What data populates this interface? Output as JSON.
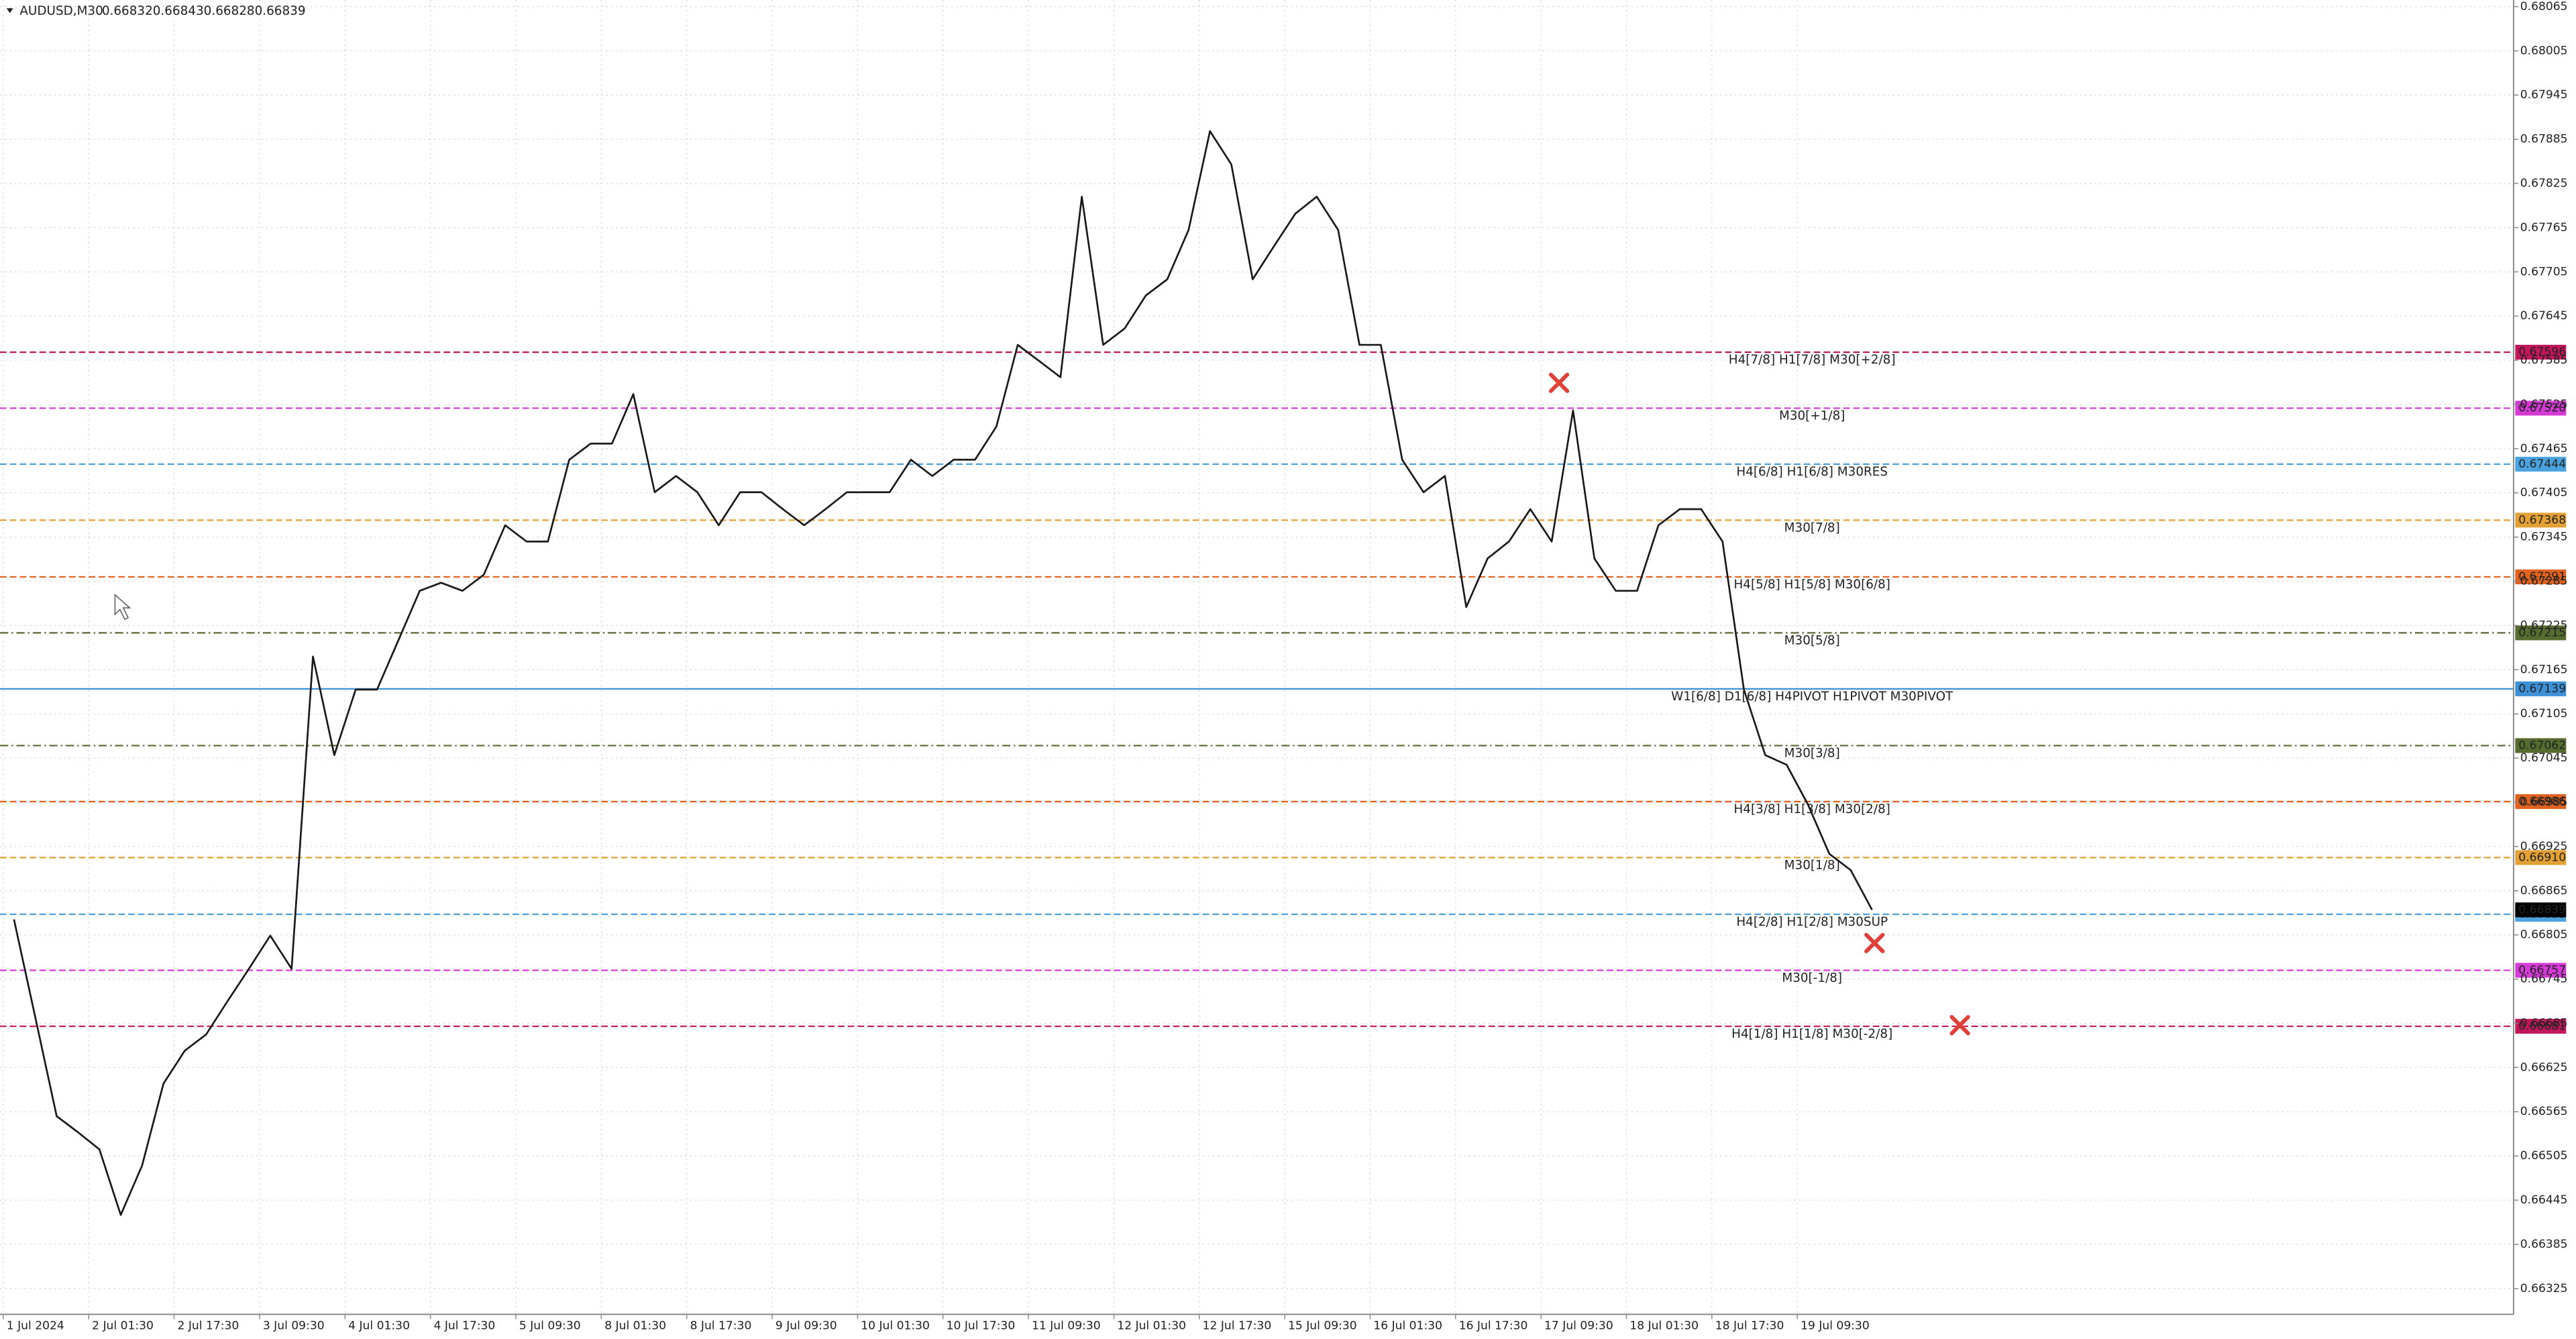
{
  "chart_data": {
    "type": "line",
    "symbol": "AUDUSD,M30",
    "ohlc": [
      0.66832,
      0.66843,
      0.66828,
      0.66839
    ],
    "categories": [
      "1 Jul 2024",
      null,
      null,
      null,
      "2 Jul 01:30",
      null,
      null,
      null,
      "2 Jul 17:30",
      null,
      null,
      null,
      "3 Jul 09:30",
      null,
      null,
      null,
      "4 Jul 01:30",
      null,
      null,
      null,
      "4 Jul 17:30",
      null,
      null,
      null,
      "5 Jul 09:30",
      null,
      null,
      null,
      "8 Jul 01:30",
      null,
      null,
      null,
      "8 Jul 17:30",
      null,
      null,
      null,
      "9 Jul 09:30",
      null,
      null,
      null,
      "10 Jul 01:30",
      null,
      null,
      null,
      "10 Jul 17:30",
      null,
      null,
      null,
      "11 Jul 09:30",
      null,
      null,
      null,
      "12 Jul 01:30",
      null,
      null,
      null,
      "12 Jul 17:30",
      null,
      null,
      null,
      "15 Jul 09:30",
      null,
      null,
      null,
      "16 Jul 01:30",
      null,
      null,
      null,
      "16 Jul 17:30",
      null,
      null,
      null,
      "17 Jul 09:30",
      null,
      null,
      null,
      "18 Jul 01:30",
      null,
      null,
      null,
      "18 Jul 17:30",
      null,
      null,
      null,
      "19 Jul 09:30",
      null,
      null,
      null
    ],
    "series": [
      {
        "name": "AUDUSD",
        "color": "#1a1a1a",
        "values": [
          0.66826,
          0.66693,
          0.66559,
          0.66537,
          0.66514,
          0.66425,
          0.66492,
          0.66603,
          0.66648,
          0.6667,
          0.66715,
          0.66759,
          0.66804,
          0.66759,
          0.67183,
          0.67049,
          0.67138,
          0.67138,
          0.67205,
          0.67272,
          0.67283,
          0.67272,
          0.67294,
          0.67361,
          0.67339,
          0.67339,
          0.6745,
          0.67472,
          0.67472,
          0.67539,
          0.67406,
          0.67428,
          0.67406,
          0.67361,
          0.67406,
          0.67406,
          0.67383,
          0.67361,
          0.67383,
          0.67406,
          0.67406,
          0.67406,
          0.6745,
          0.67428,
          0.6745,
          0.6745,
          0.67495,
          0.67606,
          0.67584,
          0.67562,
          0.67807,
          0.67606,
          0.67628,
          0.67673,
          0.67695,
          0.67762,
          0.67896,
          0.67851,
          0.67695,
          0.6774,
          0.67784,
          0.67807,
          0.67762,
          0.67606,
          0.67606,
          0.6745,
          0.67406,
          0.67428,
          0.6725,
          0.67316,
          0.67339,
          0.67383,
          0.67339,
          0.67517,
          0.67316,
          0.67272,
          0.67272,
          0.67361,
          0.67383,
          0.67383,
          0.67339,
          0.67138,
          0.67049,
          0.67036,
          0.66982,
          0.66915,
          0.66893,
          0.66839
        ]
      }
    ],
    "ylim": [
      0.6629,
      0.68074
    ],
    "yticks": [
      0.68065,
      0.68005,
      0.67945,
      0.67885,
      0.67825,
      0.67765,
      0.67705,
      0.67645,
      0.67585,
      0.67525,
      0.67465,
      0.67405,
      0.67345,
      0.67285,
      0.67225,
      0.67165,
      0.67105,
      0.67045,
      0.66985,
      0.66925,
      0.66865,
      0.66805,
      0.66745,
      0.66685,
      0.66625,
      0.66565,
      0.66505,
      0.66445,
      0.66385,
      0.66325
    ],
    "grid": true,
    "levels": [
      {
        "name": "H4[7/8] H1[7/8] M30[+2/8]",
        "value": 0.67596,
        "label": "0.67596",
        "color": "#c2185b",
        "line_style": "dashed"
      },
      {
        "name": "M30[+1/8]",
        "value": 0.6752,
        "label": "0.67520",
        "color": "#d63ad6",
        "line_style": "dashed"
      },
      {
        "name": "H4[6/8] H1[6/8] M30RES",
        "value": 0.67444,
        "label": "0.67444",
        "color": "#4aa3df",
        "line_style": "dashed"
      },
      {
        "name": "M30[7/8]",
        "value": 0.67368,
        "label": "0.67368",
        "color": "#e3a034",
        "line_style": "dashed"
      },
      {
        "name": "H4[5/8] H1[5/8] M30[6/8]",
        "value": 0.67291,
        "label": "0.67291",
        "color": "#e0621e",
        "line_style": "dashed"
      },
      {
        "name": "M30[5/8]",
        "value": 0.67215,
        "label": "0.67215",
        "color": "#556b2f",
        "line_style": "dashdot"
      },
      {
        "name": "W1[6/8] D1[6/8] H4PIVOT H1PIVOT M30PIVOT",
        "value": 0.67139,
        "label": "0.67139",
        "color": "#3d8fd6",
        "line_style": "solid"
      },
      {
        "name": "M30[3/8]",
        "value": 0.67062,
        "label": "0.67062",
        "color": "#556b2f",
        "line_style": "dashdot"
      },
      {
        "name": "H4[3/8] H1[3/8] M30[2/8]",
        "value": 0.66986,
        "label": "0.66986",
        "color": "#e0621e",
        "line_style": "dashed"
      },
      {
        "name": "M30[1/8]",
        "value": 0.6691,
        "label": "0.66910",
        "color": "#e3a034",
        "line_style": "dashed"
      },
      {
        "name": "H4[2/8] H1[2/8] M30SUP",
        "value": 0.66833,
        "label": "0.66833",
        "color": "#4aa3df",
        "line_style": "dashed"
      },
      {
        "name": "M30[-1/8]",
        "value": 0.66757,
        "label": "0.66757",
        "color": "#d63ad6",
        "line_style": "dashed"
      },
      {
        "name": "H4[1/8] H1[1/8] M30[-2/8]",
        "value": 0.66681,
        "label": "0.66681",
        "color": "#c2185b",
        "line_style": "dashed"
      }
    ]
  }
}
